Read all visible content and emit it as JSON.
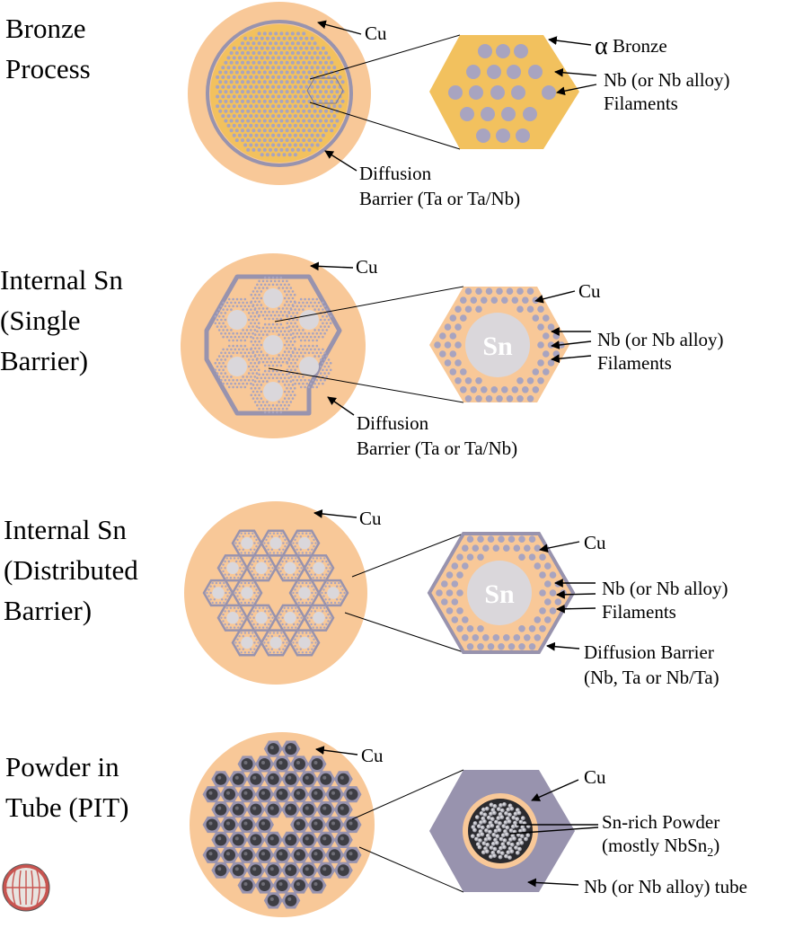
{
  "colors": {
    "cu": "#f8c898",
    "bronze": "#f2c15e",
    "filament": "#a8a4c0",
    "barrier": "#9893ae",
    "sn_core": "#dad7db",
    "pit_powder": "#3e3e44",
    "pit_grain": "#c4c4ca",
    "text": "#000000"
  },
  "panels": [
    {
      "id": "bronze",
      "title_lines": [
        "Bronze",
        "Process"
      ],
      "labels": {
        "cu": "Cu",
        "bronze_alpha": "α",
        "bronze_word": "Bronze",
        "filaments_line1": "Nb (or Nb alloy)",
        "filaments_line2": "Filaments",
        "barrier_line1": "Diffusion",
        "barrier_line2": "Barrier (Ta or Ta/Nb)"
      }
    },
    {
      "id": "internal_single",
      "title_lines": [
        "Internal Sn",
        "(Single",
        "Barrier)"
      ],
      "labels": {
        "cu_wire": "Cu",
        "cu_element": "Cu",
        "sn": "Sn",
        "filaments_line1": "Nb (or Nb alloy)",
        "filaments_line2": "Filaments",
        "barrier_line1": "Diffusion",
        "barrier_line2": "Barrier (Ta or Ta/Nb)"
      }
    },
    {
      "id": "internal_distributed",
      "title_lines": [
        "Internal Sn",
        "(Distributed",
        "Barrier)"
      ],
      "labels": {
        "cu_wire": "Cu",
        "cu_element": "Cu",
        "sn": "Sn",
        "filaments_line1": "Nb (or Nb alloy)",
        "filaments_line2": "Filaments",
        "barrier_line1": "Diffusion Barrier",
        "barrier_line2": "(Nb, Ta or Nb/Ta)"
      }
    },
    {
      "id": "pit",
      "title_lines": [
        "Powder in",
        "Tube (PIT)"
      ],
      "labels": {
        "cu_wire": "Cu",
        "cu_element": "Cu",
        "powder_line1": "Sn-rich Powder",
        "powder_line2_main": "(mostly NbSn",
        "powder_line2_sub": "2",
        "powder_line2_end": ")",
        "tube": "Nb (or Nb alloy) tube"
      }
    }
  ]
}
